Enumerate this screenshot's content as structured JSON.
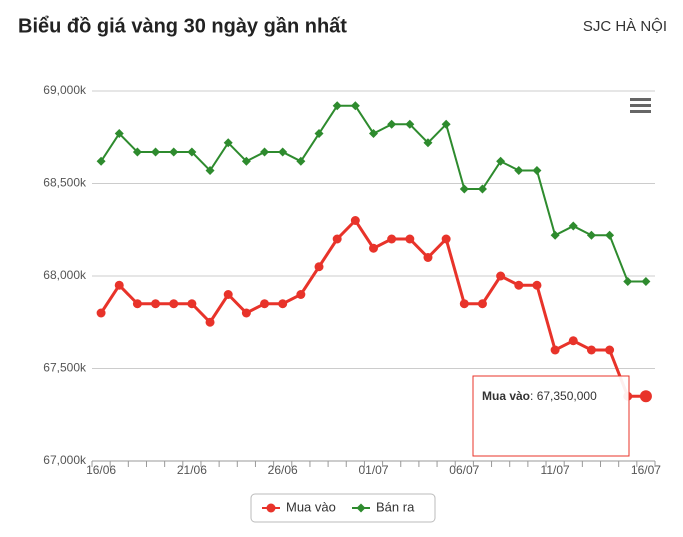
{
  "chart_data": {
    "type": "line",
    "title": "Biểu đồ giá vàng 30 ngày gần nhất",
    "subtitle": "SJC HÀ NỘI",
    "categories": [
      "16/06",
      null,
      null,
      null,
      null,
      "21/06",
      null,
      null,
      null,
      null,
      "26/06",
      null,
      null,
      null,
      null,
      "01/07",
      null,
      null,
      null,
      null,
      "06/07",
      null,
      null,
      null,
      null,
      "11/07",
      null,
      null,
      null,
      null,
      "16/07"
    ],
    "series": [
      {
        "name": "Mua vào",
        "color": "#e8332a",
        "values": [
          67800,
          67950,
          67850,
          67850,
          67850,
          67850,
          67750,
          67900,
          67800,
          67850,
          67850,
          67900,
          68050,
          68200,
          68300,
          68150,
          68200,
          68200,
          68100,
          68200,
          67850,
          67850,
          68000,
          67950,
          67950,
          67600,
          67650,
          67600,
          67600,
          67350,
          67350
        ]
      },
      {
        "name": "Bán ra",
        "color": "#2e8b2e",
        "values": [
          68620,
          68770,
          68670,
          68670,
          68670,
          68670,
          68570,
          68720,
          68620,
          68670,
          68670,
          68620,
          68770,
          68920,
          68920,
          68770,
          68820,
          68820,
          68720,
          68820,
          68470,
          68470,
          68620,
          68570,
          68570,
          68220,
          68270,
          68220,
          68220,
          67970,
          67970
        ]
      }
    ],
    "ylim": [
      67000,
      69000
    ],
    "yticks": [
      {
        "value": 67000,
        "label": "67,000k"
      },
      {
        "value": 67500,
        "label": "67,500k"
      },
      {
        "value": 68000,
        "label": "68,000k"
      },
      {
        "value": 68500,
        "label": "68,500k"
      },
      {
        "value": 69000,
        "label": "69,000k"
      }
    ],
    "grid": true,
    "tooltip": {
      "series": "Mua vào",
      "value_label": "67,350,000"
    }
  }
}
